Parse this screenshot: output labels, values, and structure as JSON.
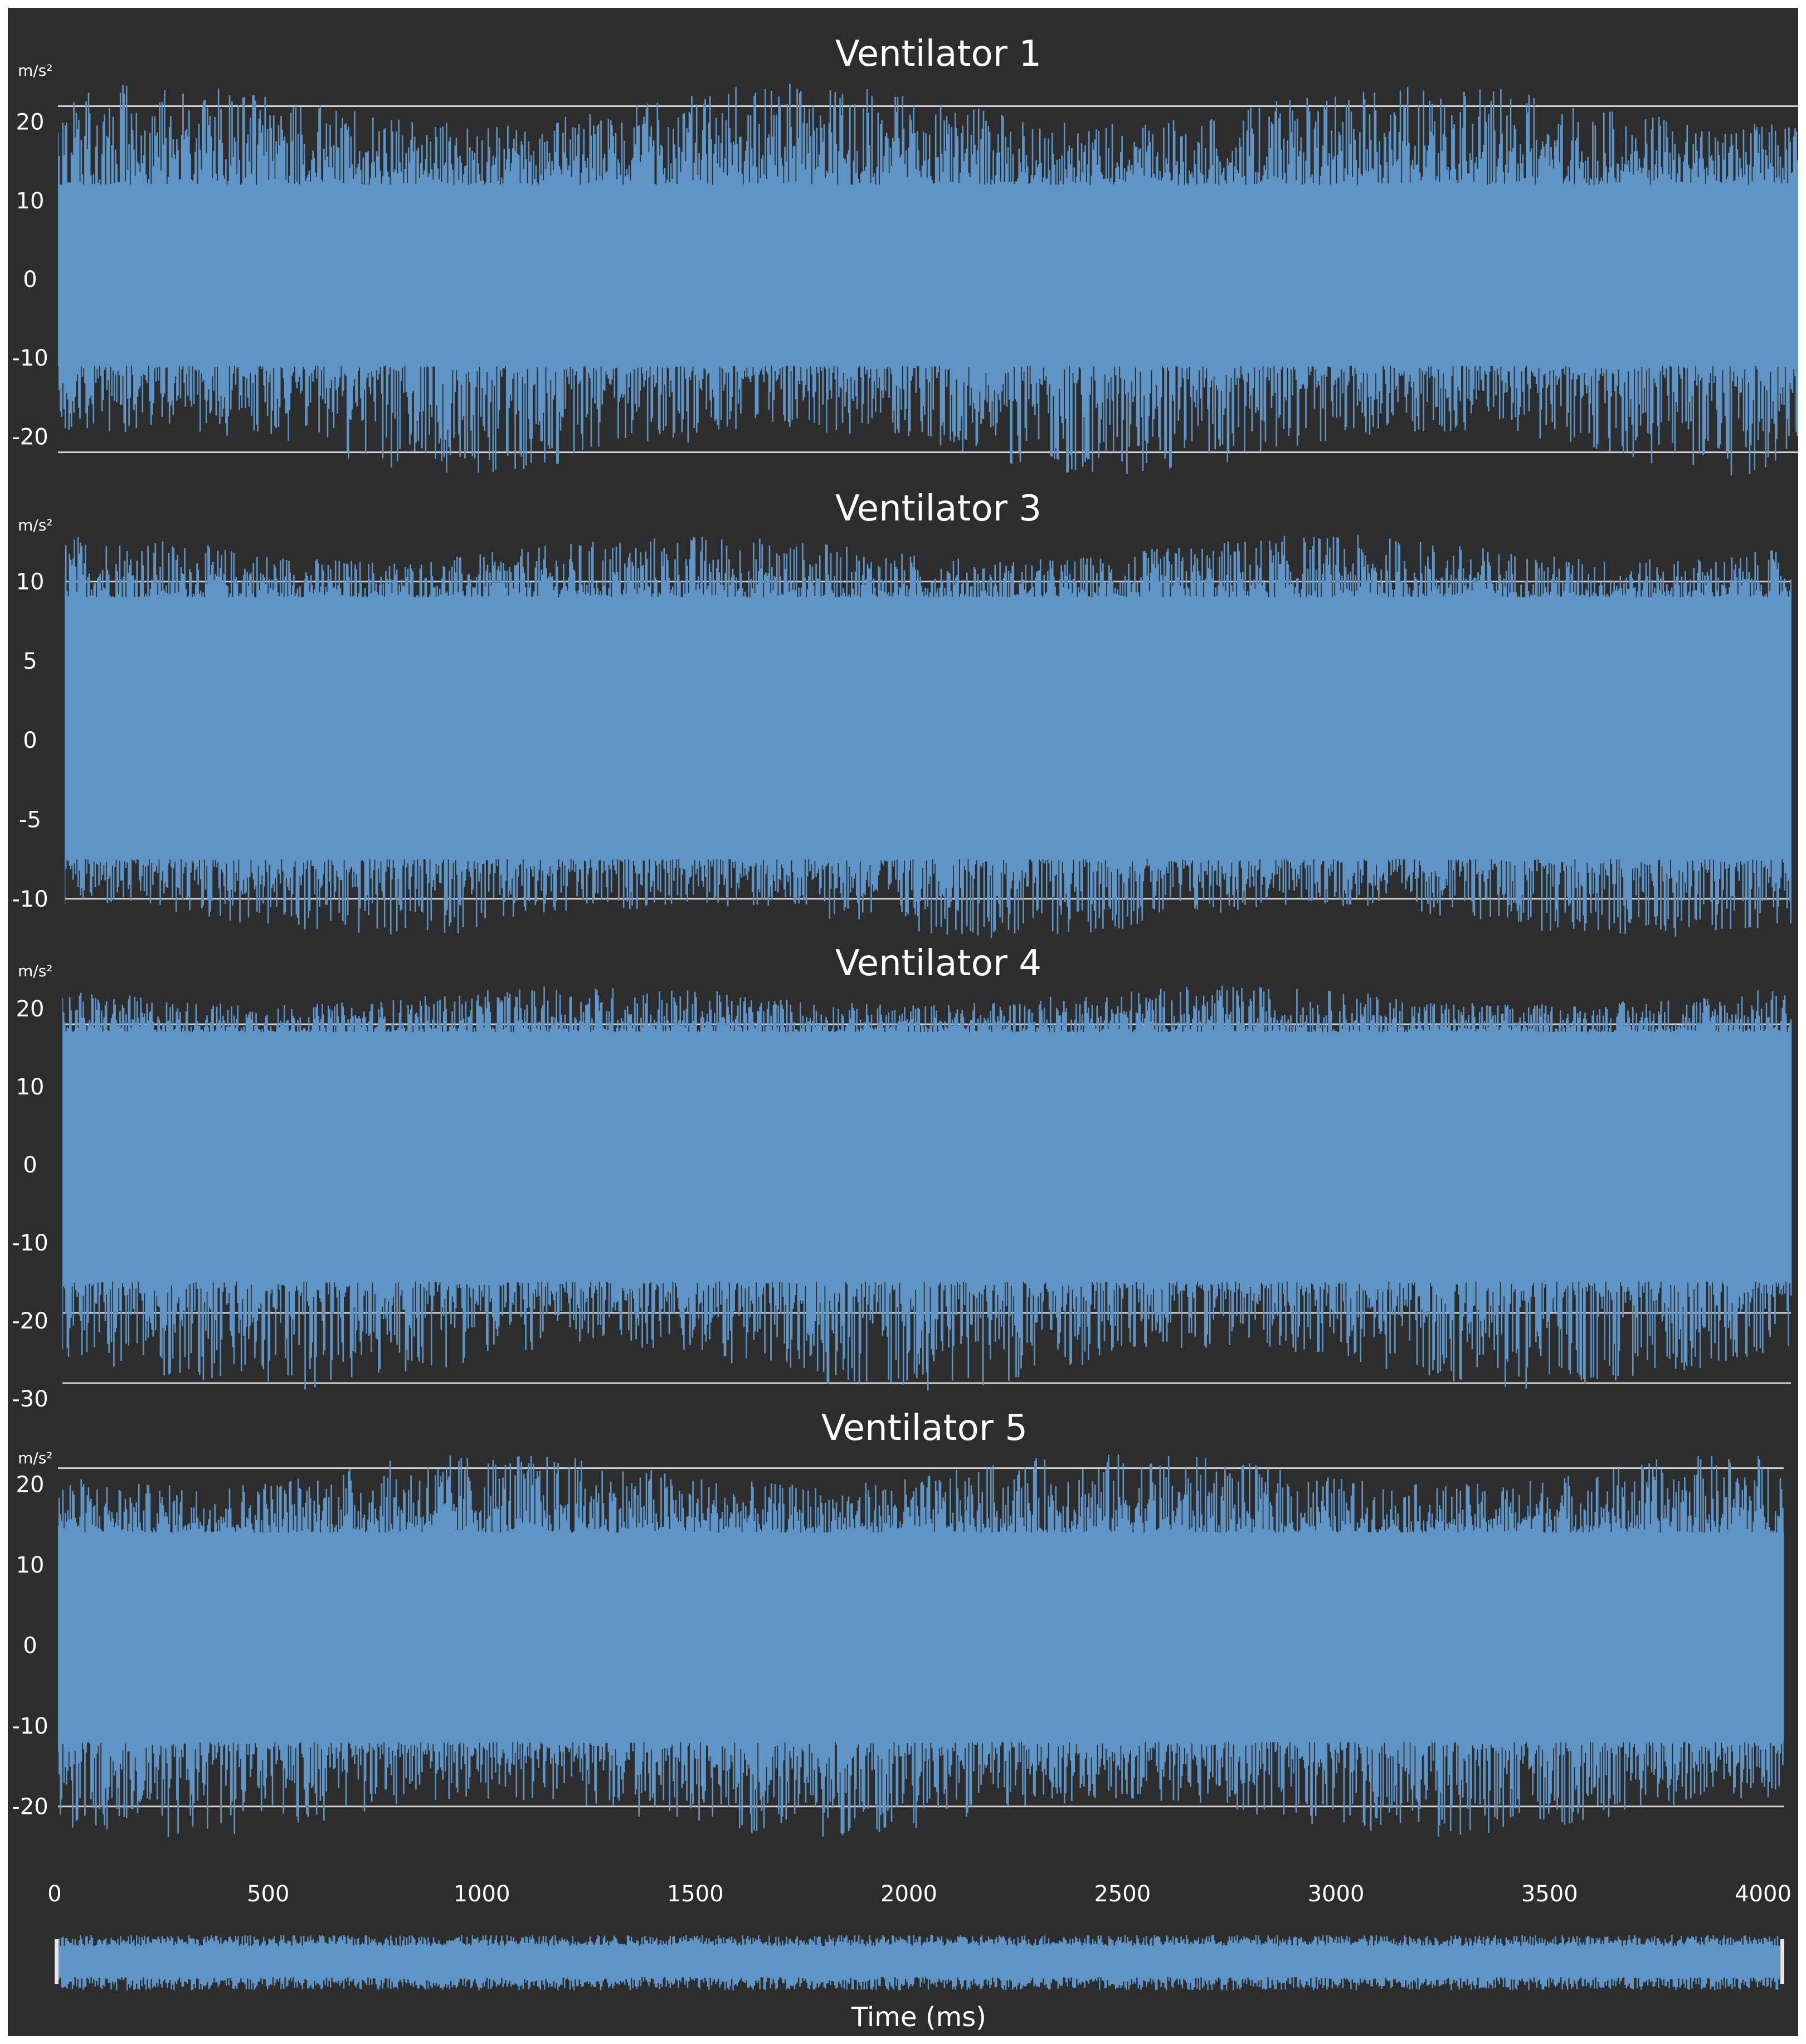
{
  "chart_data": [
    {
      "type": "line",
      "title": "Ventilator 1",
      "ylabel": "m/s²",
      "yticks": [
        20,
        10,
        0,
        -10,
        -20
      ],
      "ylim": [
        -25,
        26
      ],
      "reference_lines": [
        22,
        -22
      ],
      "envelope": {
        "core_upper": 12,
        "core_lower": -11,
        "peak_upper": 25,
        "peak_lower": -25
      },
      "color": "#5f95c6"
    },
    {
      "type": "line",
      "title": "Ventilator 3",
      "ylabel": "m/s²",
      "yticks": [
        10,
        5,
        0,
        -5,
        -10
      ],
      "ylim": [
        -12.5,
        13.5
      ],
      "reference_lines": [
        10,
        -10
      ],
      "envelope": {
        "core_upper": 9,
        "core_lower": -7.5,
        "peak_upper": 13,
        "peak_lower": -12.5
      },
      "color": "#5f95c6"
    },
    {
      "type": "line",
      "title": "Ventilator 4",
      "ylabel": "m/s²",
      "yticks": [
        20,
        10,
        0,
        -10,
        -20,
        -30
      ],
      "ylim": [
        -31,
        24
      ],
      "reference_lines": [
        18,
        -19,
        -28
      ],
      "envelope": {
        "core_upper": 17,
        "core_lower": -15,
        "peak_upper": 23,
        "peak_lower": -29
      },
      "color": "#5f95c6"
    },
    {
      "type": "line",
      "title": "Ventilator 5",
      "ylabel": "m/s²",
      "yticks": [
        20,
        10,
        0,
        -10,
        -20
      ],
      "ylim": [
        -25,
        25.5
      ],
      "reference_lines": [
        22,
        -20
      ],
      "envelope": {
        "core_upper": 14,
        "core_lower": -12,
        "peak_upper": 24,
        "peak_lower": -24
      },
      "color": "#5f95c6"
    }
  ],
  "x_axis": {
    "ticks": [
      0,
      500,
      1000,
      1500,
      2000,
      2500,
      3000,
      3500,
      4000
    ],
    "range": [
      0,
      4070
    ],
    "label": "Time (ms)"
  },
  "overview": {
    "color": "#5f95c6",
    "handle_color": "#e6e6e6"
  },
  "colors": {
    "background": "#2d2d2d",
    "signal": "#5f95c6",
    "reference_line": "#d0d0d0",
    "text": "#ffffff"
  }
}
